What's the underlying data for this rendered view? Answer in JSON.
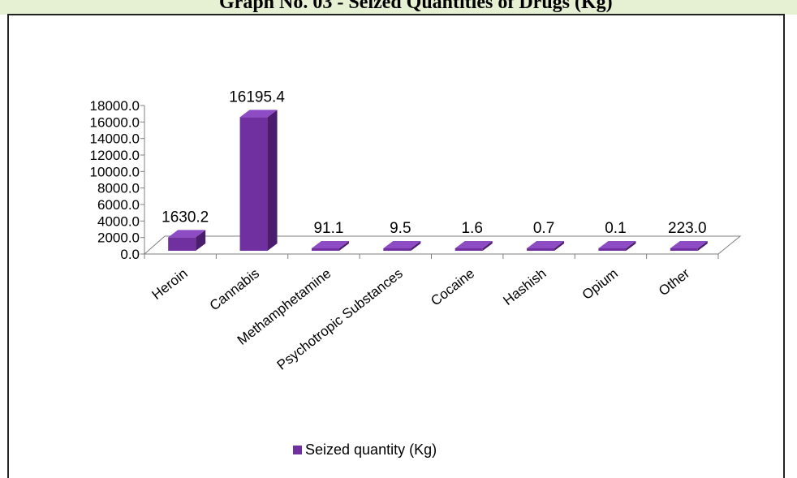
{
  "page": {
    "title": "Graph No. 03 - Seized Quantities of Drugs (Kg)"
  },
  "colors": {
    "bar_front": "#7030a0",
    "bar_side": "#4b1d6e",
    "bar_top": "#8e4cc4",
    "accent_band": "#e6f0d2"
  },
  "chart_data": {
    "type": "bar",
    "title": "Graph No. 03 - Seized Quantities of Drugs (Kg)",
    "categories": [
      "Heroin",
      "Cannabis",
      "Methamphetamine",
      "Psychotropic Substances",
      "Cocaine",
      "Hashish",
      "Opium",
      "Other"
    ],
    "series": [
      {
        "name": "Seized quantity (Kg)",
        "values": [
          1630.2,
          16195.4,
          91.1,
          9.5,
          1.6,
          0.7,
          0.1,
          223.0
        ]
      }
    ],
    "data_labels": [
      "1630.2",
      "16195.4",
      "91.1",
      "9.5",
      "1.6",
      "0.7",
      "0.1",
      "223.0"
    ],
    "y_ticks": [
      "0.0",
      "2000.0",
      "4000.0",
      "6000.0",
      "8000.0",
      "10000.0",
      "12000.0",
      "14000.0",
      "16000.0",
      "18000.0"
    ],
    "ylim": [
      0,
      18000
    ],
    "legend_position": "bottom",
    "three_d": true
  }
}
